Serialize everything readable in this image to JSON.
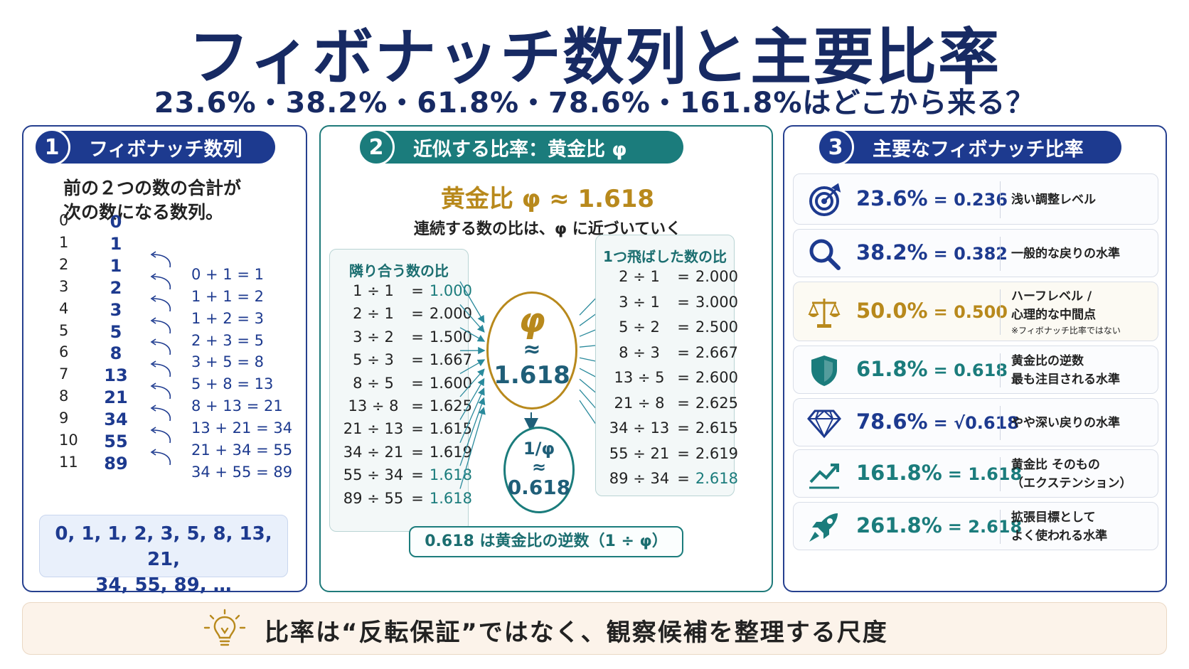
{
  "title": "フィボナッチ数列と主要比率",
  "subtitle": "23.6%・38.2%・61.8%・78.6%・161.8%はどこから来る？",
  "panel1": {
    "num": "1",
    "header": "フィボナッチ数列",
    "desc_line1": "前の２つの数の合計が",
    "desc_line2": "次の数になる数列。",
    "rows": [
      {
        "idx": "0",
        "val": "0",
        "eq": ""
      },
      {
        "idx": "1",
        "val": "1",
        "eq": ""
      },
      {
        "idx": "2",
        "val": "1",
        "eq": "0 + 1 = 1"
      },
      {
        "idx": "3",
        "val": "2",
        "eq": "1 + 1 = 2"
      },
      {
        "idx": "4",
        "val": "3",
        "eq": "1 + 2 = 3"
      },
      {
        "idx": "5",
        "val": "5",
        "eq": "2 + 3 = 5"
      },
      {
        "idx": "6",
        "val": "8",
        "eq": "3 + 5 = 8"
      },
      {
        "idx": "7",
        "val": "13",
        "eq": "5 + 8 = 13"
      },
      {
        "idx": "8",
        "val": "21",
        "eq": "8 + 13 = 21"
      },
      {
        "idx": "9",
        "val": "34",
        "eq": "13 + 21 = 34"
      },
      {
        "idx": "10",
        "val": "55",
        "eq": "21 + 34 = 55"
      },
      {
        "idx": "11",
        "val": "89",
        "eq": "34 + 55 = 89"
      }
    ],
    "summary_line1": "0, 1, 1, 2, 3, 5, 8, 13, 21,",
    "summary_line2": "34, 55, 89, …"
  },
  "panel2": {
    "num": "2",
    "header": "近似する比率：黄金比 φ",
    "phi_title": "黄金比 φ ≈ 1.618",
    "phi_desc": "連続する数の比は、φ に近づいていく",
    "left_box": {
      "title": "隣り合う数の比",
      "rows": [
        {
          "expr": "1 ÷ 1",
          "val": "1.000",
          "hl": true
        },
        {
          "expr": "2 ÷ 1",
          "val": "2.000",
          "hl": false
        },
        {
          "expr": "3 ÷ 2",
          "val": "1.500",
          "hl": false
        },
        {
          "expr": "5 ÷ 3",
          "val": "1.667",
          "hl": false
        },
        {
          "expr": "8 ÷ 5",
          "val": "1.600",
          "hl": false
        },
        {
          "expr": "13 ÷ 8",
          "val": "1.625",
          "hl": false
        },
        {
          "expr": "21 ÷ 13",
          "val": "1.615",
          "hl": false
        },
        {
          "expr": "34 ÷ 21",
          "val": "1.619",
          "hl": false
        },
        {
          "expr": "55 ÷ 34",
          "val": "1.618",
          "hl": true
        },
        {
          "expr": "89 ÷ 55",
          "val": "1.618",
          "hl": true
        }
      ]
    },
    "right_box": {
      "title": "1つ飛ばした数の比",
      "rows": [
        {
          "expr": "2 ÷ 1",
          "val": "2.000",
          "hl": false
        },
        {
          "expr": "3 ÷ 1",
          "val": "3.000",
          "hl": false
        },
        {
          "expr": "5 ÷ 2",
          "val": "2.500",
          "hl": false
        },
        {
          "expr": "8 ÷ 3",
          "val": "2.667",
          "hl": false
        },
        {
          "expr": "13 ÷ 5",
          "val": "2.600",
          "hl": false
        },
        {
          "expr": "21 ÷ 8",
          "val": "2.625",
          "hl": false
        },
        {
          "expr": "34 ÷ 13",
          "val": "2.615",
          "hl": false
        },
        {
          "expr": "55 ÷ 21",
          "val": "2.619",
          "hl": false
        },
        {
          "expr": "89 ÷ 34",
          "val": "2.618",
          "hl": true
        }
      ]
    },
    "eq_sign": "=",
    "phi_symbol": "φ",
    "approx": "≈",
    "phi_value": "1.618",
    "inv_symbol": "1/φ",
    "inv_value": "0.618",
    "inv_note": "0.618 は黄金比の逆数（1 ÷ φ）"
  },
  "panel3": {
    "num": "3",
    "header": "主要なフィボナッチ比率",
    "cards": [
      {
        "icon": "target-icon",
        "pct": "23.6%",
        "dec": "= 0.236",
        "color": "navy",
        "line1": "浅い調整レベル",
        "line2": "",
        "note": ""
      },
      {
        "icon": "magnifier-icon",
        "pct": "38.2%",
        "dec": "= 0.382",
        "color": "navy",
        "line1": "一般的な戻りの水準",
        "line2": "",
        "note": ""
      },
      {
        "icon": "scale-icon",
        "pct": "50.0%",
        "dec": "= 0.500",
        "color": "gold",
        "line1": "ハーフレベル /",
        "line2": "心理的な中間点",
        "note": "※フィボナッチ比率ではない"
      },
      {
        "icon": "shield-icon",
        "pct": "61.8%",
        "dec": "= 0.618",
        "color": "teal",
        "line1": "黄金比の逆数",
        "line2": "最も注目される水準",
        "note": ""
      },
      {
        "icon": "diamond-icon",
        "pct": "78.6%",
        "dec": "= √0.618",
        "color": "navy",
        "line1": "やや深い戻りの水準",
        "line2": "",
        "note": ""
      },
      {
        "icon": "trend-up-icon",
        "pct": "161.8%",
        "dec": "= 1.618",
        "color": "teal",
        "line1": "黄金比 そのもの",
        "line2": "（エクステンション）",
        "note": ""
      },
      {
        "icon": "rocket-icon",
        "pct": "261.8%",
        "dec": "= 2.618",
        "color": "teal",
        "line1": "拡張目標として",
        "line2": "よく使われる水準",
        "note": ""
      }
    ]
  },
  "bottom": {
    "icon": "lightbulb-icon",
    "text": "比率は“反転保証”ではなく、観察候補を整理する尺度"
  },
  "colors": {
    "navy": "#1d3a8f",
    "teal": "#1b7c7c",
    "gold": "#b8891c",
    "title": "#172a63"
  }
}
